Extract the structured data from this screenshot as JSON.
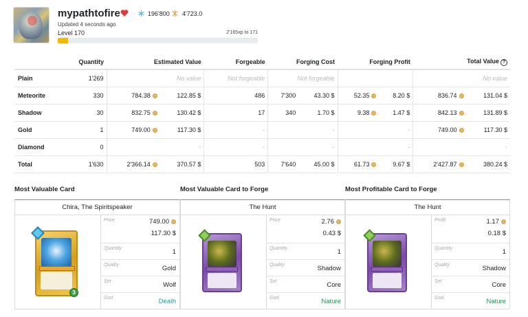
{
  "player": {
    "name": "mypathtofire",
    "ice_value": "196'800",
    "fire_value": "4'723.0",
    "updated": "Updated 4 seconds ago",
    "level": "Level 170",
    "xp_text": "2'165xp to 171",
    "level_progress_percent": 5
  },
  "table": {
    "headers": [
      "",
      "Quantity",
      "Estimated Value",
      "Forgeable",
      "Forging Cost",
      "Forging Profit",
      "Total Value"
    ],
    "rows": [
      {
        "label": "Plain",
        "qty": "1'269",
        "est_nv": "No value",
        "forge_nf": "Not forgeable",
        "forgecost_nf": "Not forgeable",
        "total_nv": "No value"
      },
      {
        "label": "Meteorite",
        "qty": "330",
        "est_dec": "784.38",
        "est_usd": "122.85 $",
        "forge": "486",
        "cost_dec": "7'300",
        "cost_usd": "43.30 $",
        "profit_dec": "52.35",
        "profit_usd": "8.20 $",
        "total_dec": "836.74",
        "total_usd": "131.04 $"
      },
      {
        "label": "Shadow",
        "qty": "30",
        "est_dec": "832.75",
        "est_usd": "130.42 $",
        "forge": "17",
        "cost_dec": "340",
        "cost_usd": "1.70 $",
        "profit_dec": "9.38",
        "profit_usd": "1.47 $",
        "total_dec": "842.13",
        "total_usd": "131.89 $"
      },
      {
        "label": "Gold",
        "qty": "1",
        "est_dec": "749.00",
        "est_usd": "117.30 $",
        "forge": "-",
        "cost": "-",
        "profit": "-",
        "total_dec": "749.00",
        "total_usd": "117.30 $"
      },
      {
        "label": "Diamond",
        "qty": "0",
        "est": "-",
        "forge": "-",
        "cost": "-",
        "profit": "-",
        "total": "-"
      },
      {
        "label": "Total",
        "qty": "1'630",
        "est_dec": "2'366.14",
        "est_usd": "370.57 $",
        "forge": "503",
        "cost_dec": "7'640",
        "cost_usd": "45.00 $",
        "profit_dec": "61.73",
        "profit_usd": "9.67 $",
        "total_dec": "2'427.87",
        "total_usd": "380.24 $"
      }
    ]
  },
  "sections": {
    "valuable": {
      "title": "Most Valuable Card",
      "card_name": "Chira, The Spiritspeaker",
      "k1": "Price",
      "v1a": "749.00",
      "v1b": "117.30 $",
      "k2": "Quantity",
      "v2": "1",
      "k3": "Quality",
      "v3": "Gold",
      "k4": "Set",
      "v4": "Wolf",
      "k5": "God",
      "v5": "Death"
    },
    "forge": {
      "title": "Most Valuable Card to Forge",
      "card_name": "The Hunt",
      "k1": "Price",
      "v1a": "2.76",
      "v1b": "0.43 $",
      "k2": "Quantity",
      "v2": "1",
      "k3": "Quality",
      "v3": "Shadow",
      "k4": "Set",
      "v4": "Core",
      "k5": "God",
      "v5": "Nature"
    },
    "profit": {
      "title": "Most Profitable Card to Forge",
      "card_name": "The Hunt",
      "k1": "Profit",
      "v1a": "1.17",
      "v1b": "0.18 $",
      "k2": "Quantity",
      "v2": "1",
      "k3": "Quality",
      "v3": "Shadow",
      "k4": "Set",
      "v4": "Core",
      "k5": "God",
      "v5": "Nature"
    }
  },
  "icons": {
    "heart": "heart-icon",
    "ice": "snowflake-icon",
    "fire": "flux-icon",
    "decimal": "gods-currency-icon",
    "help": "help-circle-icon"
  },
  "colors": {
    "accent": "#f5b80a",
    "heart": "#e03a3a",
    "god_death": "#2a9d8f",
    "god_nature": "#2e8b57"
  }
}
